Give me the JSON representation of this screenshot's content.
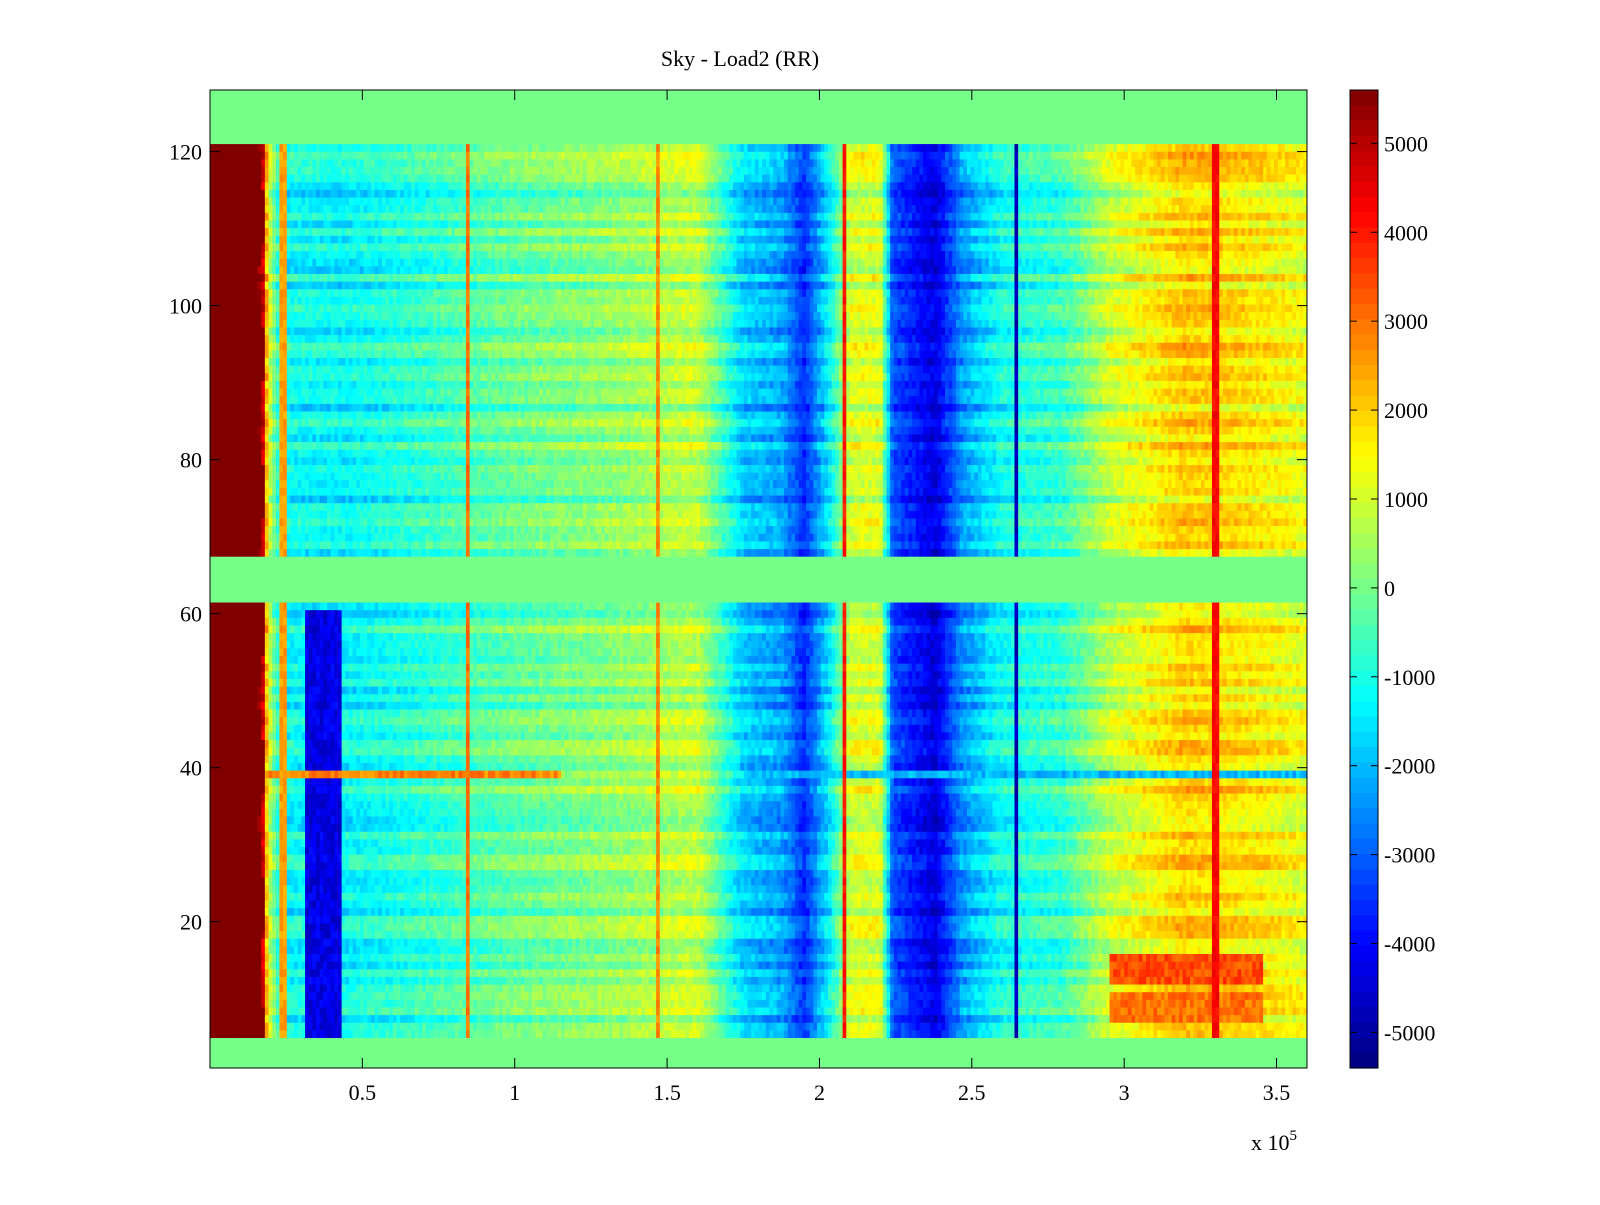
{
  "chart_data": {
    "type": "heatmap",
    "title": "Sky - Load2 (RR)",
    "xlabel": "",
    "ylabel": "",
    "xlim": [
      0,
      360000
    ],
    "ylim": [
      1,
      128
    ],
    "x_exponent_label": "x 10",
    "x_exponent_power": "5",
    "x_ticks": [
      {
        "value": 0.5,
        "label": "0.5"
      },
      {
        "value": 1,
        "label": "1"
      },
      {
        "value": 1.5,
        "label": "1.5"
      },
      {
        "value": 2,
        "label": "2"
      },
      {
        "value": 2.5,
        "label": "2.5"
      },
      {
        "value": 3,
        "label": "3"
      },
      {
        "value": 3.5,
        "label": "3.5"
      }
    ],
    "y_ticks": [
      {
        "value": 20,
        "label": "20"
      },
      {
        "value": 40,
        "label": "40"
      },
      {
        "value": 60,
        "label": "60"
      },
      {
        "value": 80,
        "label": "80"
      },
      {
        "value": 100,
        "label": "100"
      },
      {
        "value": 120,
        "label": "120"
      }
    ],
    "colorbar": {
      "colormap": "jet",
      "clim": [
        -5400,
        5600
      ],
      "ticks": [
        {
          "value": 5000,
          "label": "5000"
        },
        {
          "value": 4000,
          "label": "4000"
        },
        {
          "value": 3000,
          "label": "3000"
        },
        {
          "value": 2000,
          "label": "2000"
        },
        {
          "value": 1000,
          "label": "1000"
        },
        {
          "value": 0,
          "label": "0"
        },
        {
          "value": -1000,
          "label": "-1000"
        },
        {
          "value": -2000,
          "label": "-2000"
        },
        {
          "value": -3000,
          "label": "-3000"
        },
        {
          "value": -4000,
          "label": "-4000"
        },
        {
          "value": -5000,
          "label": "-5000"
        }
      ]
    },
    "blank_rows": [
      [
        1,
        4
      ],
      [
        62,
        67
      ],
      [
        122,
        128
      ]
    ],
    "saturated_region": {
      "x": [
        0,
        17000
      ],
      "y": [
        4,
        122
      ],
      "value": 5600
    },
    "column_profile": [
      {
        "x": 0,
        "value": 5600
      },
      {
        "x": 17000,
        "value": 5600
      },
      {
        "x": 19000,
        "value": 1200
      },
      {
        "x": 23000,
        "value": -1200
      },
      {
        "x": 45000,
        "value": -1300
      },
      {
        "x": 70000,
        "value": -800
      },
      {
        "x": 100000,
        "value": -200
      },
      {
        "x": 130000,
        "value": 200
      },
      {
        "x": 160000,
        "value": 800
      },
      {
        "x": 175000,
        "value": -1800
      },
      {
        "x": 188000,
        "value": -2300
      },
      {
        "x": 195000,
        "value": -3600
      },
      {
        "x": 203000,
        "value": -1500
      },
      {
        "x": 210000,
        "value": 1000
      },
      {
        "x": 220000,
        "value": 1100
      },
      {
        "x": 224000,
        "value": -3200
      },
      {
        "x": 238000,
        "value": -4400
      },
      {
        "x": 247000,
        "value": -2400
      },
      {
        "x": 260000,
        "value": -1100
      },
      {
        "x": 280000,
        "value": -700
      },
      {
        "x": 295000,
        "value": 800
      },
      {
        "x": 320000,
        "value": 2000
      },
      {
        "x": 345000,
        "value": 1600
      },
      {
        "x": 360000,
        "value": 1200
      }
    ],
    "vertical_lines": [
      {
        "x": 24000,
        "value": 2500
      },
      {
        "x": 85000,
        "value": 3000
      },
      {
        "x": 147000,
        "value": 2800
      },
      {
        "x": 208000,
        "value": 4000
      },
      {
        "x": 265000,
        "value": -4800
      },
      {
        "x": 330000,
        "value": 4200
      }
    ],
    "anomalies": [
      {
        "x": [
          31000,
          43000
        ],
        "y": [
          5,
          60
        ],
        "value": -4300
      },
      {
        "x": [
          0,
          115000
        ],
        "y": [
          38.5,
          39.5
        ],
        "value": 2800
      },
      {
        "x": [
          295000,
          345000
        ],
        "y": [
          12,
          15
        ],
        "value": 3400
      },
      {
        "x": [
          295000,
          345000
        ],
        "y": [
          7,
          10
        ],
        "value": 3000
      },
      {
        "x": [
          175000,
          360000
        ],
        "y": [
          38.5,
          39.5
        ],
        "value": -2000
      }
    ]
  }
}
